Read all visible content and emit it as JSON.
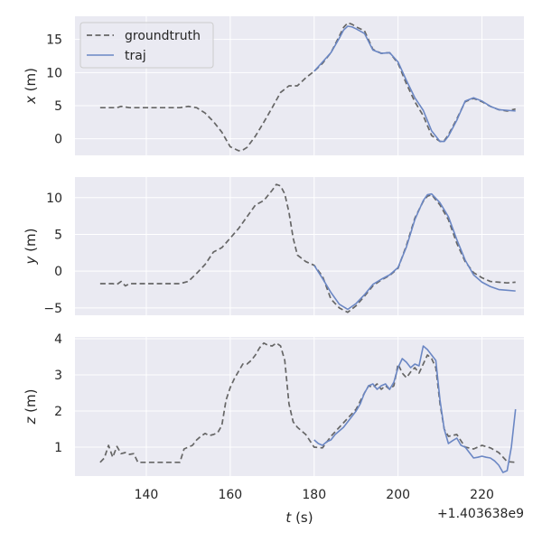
{
  "chart_data": {
    "type": "line",
    "layout": "3 vertically stacked subplots sharing the x axis",
    "legend": {
      "placement": "upper-left of top panel",
      "entries": [
        {
          "name": "groundtruth",
          "style": "dashed",
          "color": "#666666"
        },
        {
          "name": "traj",
          "style": "solid",
          "color": "#6b87c4"
        }
      ]
    },
    "x_offset_label": "+1.403638e9",
    "xlabel_prefix": "t",
    "xlabel_suffix": " (s)",
    "x_ticks": [
      140,
      160,
      180,
      200,
      220
    ],
    "xlim": [
      123,
      230
    ],
    "grid": true,
    "background": "#eaeaf2",
    "panels": [
      {
        "ylabel_var": "x",
        "ylabel_unit": " (m)",
        "ylim": [
          -2.5,
          18.5
        ],
        "y_ticks": [
          0,
          5,
          10,
          15
        ],
        "series": [
          {
            "name": "groundtruth",
            "x": [
              129,
              133,
              134,
              136,
              140,
              145,
              148,
              150,
              152,
              154,
              156,
              158,
              160,
              162,
              163,
              164,
              166,
              168,
              170,
              172,
              174,
              176,
              178,
              180,
              182,
              184,
              186,
              187,
              188,
              189,
              190,
              192,
              194,
              196,
              198,
              200,
              202,
              204,
              206,
              208,
              210,
              211,
              212,
              214,
              216,
              218,
              220,
              222,
              224,
              226,
              228
            ],
            "y": [
              4.7,
              4.7,
              4.9,
              4.7,
              4.7,
              4.7,
              4.7,
              4.9,
              4.7,
              3.9,
              2.6,
              1.0,
              -1.2,
              -1.8,
              -1.7,
              -1.3,
              0.4,
              2.5,
              4.7,
              7.0,
              8.0,
              8.0,
              9.2,
              10.2,
              11.4,
              13.0,
              15.5,
              16.8,
              17.5,
              17.3,
              16.9,
              16.3,
              13.5,
              12.9,
              13.0,
              11.4,
              8.3,
              5.6,
              3.5,
              0.5,
              -0.4,
              -0.3,
              0.6,
              3.0,
              5.6,
              6.1,
              5.6,
              4.9,
              4.4,
              4.2,
              4.5
            ]
          },
          {
            "name": "traj",
            "x": [
              180,
              182,
              184,
              186,
              187,
              188,
              189,
              190,
              192,
              194,
              196,
              198,
              200,
              202,
              204,
              206,
              208,
              210,
              211,
              212,
              214,
              216,
              218,
              220,
              222,
              224,
              226,
              228
            ],
            "y": [
              10.2,
              11.6,
              13.0,
              15.2,
              16.4,
              17.0,
              16.9,
              16.6,
              15.9,
              13.4,
              12.9,
              13.0,
              11.6,
              8.8,
              6.2,
              4.3,
              1.2,
              -0.4,
              -0.4,
              0.4,
              2.8,
              5.7,
              6.2,
              5.7,
              4.9,
              4.4,
              4.3,
              4.2
            ]
          }
        ]
      },
      {
        "ylabel_var": "y",
        "ylabel_unit": " (m)",
        "ylim": [
          -6.0,
          12.8
        ],
        "y_ticks": [
          -5,
          0,
          5,
          10
        ],
        "series": [
          {
            "name": "groundtruth",
            "x": [
              129,
              132,
              133,
              134,
              135,
              136,
              140,
              145,
              148,
              150,
              152,
              154,
              156,
              158,
              160,
              162,
              164,
              166,
              168,
              170,
              171,
              172,
              173,
              174,
              175,
              176,
              178,
              180,
              182,
              184,
              186,
              188,
              190,
              192,
              194,
              196,
              198,
              200,
              202,
              204,
              206,
              207,
              208,
              210,
              212,
              214,
              216,
              218,
              220,
              222,
              224,
              226,
              228
            ],
            "y": [
              -1.7,
              -1.7,
              -1.8,
              -1.4,
              -2.0,
              -1.7,
              -1.7,
              -1.7,
              -1.7,
              -1.4,
              -0.3,
              0.9,
              2.6,
              3.2,
              4.5,
              5.8,
              7.4,
              9.0,
              9.6,
              11.0,
              11.8,
              11.6,
              10.5,
              8.0,
              4.5,
              2.2,
              1.3,
              0.8,
              -0.7,
              -3.8,
              -5.0,
              -5.6,
              -4.7,
              -3.4,
              -2.0,
              -1.2,
              -0.6,
              0.4,
              3.5,
              7.2,
              9.5,
              10.2,
              10.4,
              9.0,
              7.0,
              3.8,
              1.3,
              -0.2,
              -0.9,
              -1.4,
              -1.5,
              -1.6,
              -1.5
            ]
          },
          {
            "name": "traj",
            "x": [
              180,
              182,
              184,
              186,
              188,
              190,
              192,
              194,
              196,
              198,
              200,
              202,
              204,
              206,
              207,
              208,
              210,
              212,
              214,
              216,
              218,
              220,
              222,
              224,
              226,
              228
            ],
            "y": [
              0.8,
              -1.0,
              -2.9,
              -4.5,
              -5.2,
              -4.4,
              -3.2,
              -1.8,
              -1.1,
              -0.5,
              0.5,
              3.3,
              7.0,
              9.6,
              10.4,
              10.5,
              9.3,
              7.4,
              4.3,
              1.5,
              -0.5,
              -1.5,
              -2.1,
              -2.5,
              -2.6,
              -2.7
            ]
          }
        ]
      },
      {
        "ylabel_var": "z",
        "ylabel_unit": " (m)",
        "ylim": [
          0.2,
          4.05
        ],
        "y_ticks": [
          1,
          2,
          3,
          4
        ],
        "series": [
          {
            "name": "groundtruth",
            "x": [
              129,
              130,
              131,
              132,
              133,
              134,
              135,
              136,
              137,
              138,
              140,
              145,
              148,
              149,
              150,
              151,
              152,
              153,
              154,
              155,
              156,
              157,
              158,
              159,
              160,
              161,
              162,
              163,
              164,
              165,
              166,
              167,
              168,
              169,
              170,
              171,
              172,
              173,
              174,
              175,
              176,
              178,
              180,
              182,
              184,
              186,
              188,
              190,
              192,
              193,
              194,
              195,
              196,
              197,
              198,
              199,
              200,
              201,
              202,
              203,
              204,
              205,
              206,
              207,
              208,
              209,
              210,
              211,
              212,
              214,
              216,
              218,
              220,
              222,
              224,
              226,
              228
            ],
            "y": [
              0.58,
              0.7,
              1.05,
              0.72,
              1.02,
              0.82,
              0.85,
              0.8,
              0.82,
              0.58,
              0.58,
              0.58,
              0.58,
              0.95,
              1.0,
              1.05,
              1.2,
              1.3,
              1.38,
              1.32,
              1.35,
              1.4,
              1.6,
              2.3,
              2.65,
              2.9,
              3.1,
              3.3,
              3.3,
              3.4,
              3.55,
              3.75,
              3.88,
              3.82,
              3.8,
              3.88,
              3.8,
              3.4,
              2.2,
              1.7,
              1.55,
              1.35,
              1.0,
              0.98,
              1.3,
              1.55,
              1.8,
              2.05,
              2.5,
              2.7,
              2.65,
              2.75,
              2.6,
              2.7,
              2.6,
              2.7,
              3.3,
              3.05,
              2.92,
              3.08,
              3.2,
              3.05,
              3.3,
              3.55,
              3.45,
              3.2,
              2.2,
              1.5,
              1.3,
              1.35,
              1.0,
              0.95,
              1.05,
              0.98,
              0.85,
              0.6,
              0.58
            ]
          },
          {
            "name": "traj",
            "x": [
              180,
              181,
              182,
              183,
              184,
              185,
              186,
              187,
              188,
              189,
              190,
              191,
              192,
              193,
              194,
              195,
              196,
              197,
              198,
              199,
              200,
              201,
              202,
              203,
              204,
              205,
              206,
              207,
              208,
              209,
              210,
              211,
              212,
              213,
              214,
              215,
              216,
              217,
              218,
              219,
              220,
              221,
              222,
              223,
              224,
              225,
              226,
              227,
              228
            ],
            "y": [
              1.2,
              1.1,
              1.05,
              1.15,
              1.2,
              1.35,
              1.45,
              1.55,
              1.7,
              1.85,
              2.0,
              2.2,
              2.5,
              2.7,
              2.75,
              2.6,
              2.7,
              2.75,
              2.6,
              2.8,
              3.2,
              3.45,
              3.35,
              3.2,
              3.3,
              3.25,
              3.8,
              3.7,
              3.55,
              3.4,
              2.3,
              1.5,
              1.1,
              1.18,
              1.25,
              1.05,
              1.0,
              0.85,
              0.7,
              0.72,
              0.75,
              0.72,
              0.7,
              0.62,
              0.5,
              0.3,
              0.35,
              1.0,
              2.05
            ]
          }
        ]
      }
    ]
  }
}
